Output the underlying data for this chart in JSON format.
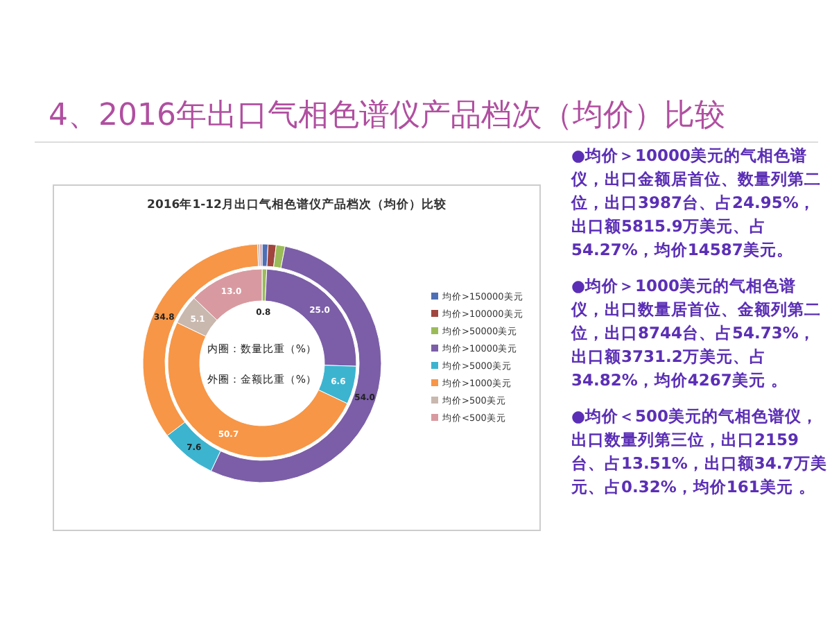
{
  "chart_data": [
    {
      "type": "other",
      "title": "4、2016年出口气相色谱仪产品档次（均价）比较",
      "annotations": [
        "●均价＞10000美元的气相色谱仪，出口金额居首位、数量列第二位，出口3987台、占24.95%，出口额5815.9万美元、占54.27%，均价14587美元。",
        "●均价＞1000美元的气相色谱仪，出口数量居首位、金额列第二位，出口8744台、占54.73%，出口额3731.2万美元、占34.82%，均价4267美元 。",
        "●均价＜500美元的气相色谱仪，出口数量列第三位，出口2159台、占13.51%，出口额34.7万美元、占0.32%，均价161美元 。"
      ]
    },
    {
      "type": "donut",
      "title": "2016年1-12月出口气相色谱仪产品档次（均价）比较",
      "categories": [
        "均价>150000美元",
        "均价>100000美元",
        "均价>50000美元",
        "均价>10000美元",
        "均价>5000美元",
        "均价>1000美元",
        "均价>500美元",
        "均价<500美元"
      ],
      "annotations": [
        "内圈：数量比重（%）",
        "外圈：金额比重（%）"
      ],
      "colors": [
        "#4f6fb5",
        "#a0463f",
        "#9bbb59",
        "#7b5ea7",
        "#3cb4d0",
        "#f79646",
        "#c9b8ae",
        "#d89aa0"
      ],
      "legend": "right",
      "series": [
        {
          "values": [
            0,
            0,
            0.8,
            25.0,
            6.6,
            50.7,
            5.1,
            13.0
          ],
          "value_labels": [
            null,
            null,
            "0.8",
            "25.0",
            "6.6",
            "50.7",
            "5.1",
            "13.0"
          ]
        },
        {
          "values": [
            0.8,
            1.1,
            1.2,
            54.0,
            7.6,
            34.8,
            0.3,
            0.3
          ],
          "value_labels": [
            null,
            null,
            null,
            "54.0",
            "7.6",
            "34.8",
            null,
            null
          ]
        }
      ]
    }
  ]
}
